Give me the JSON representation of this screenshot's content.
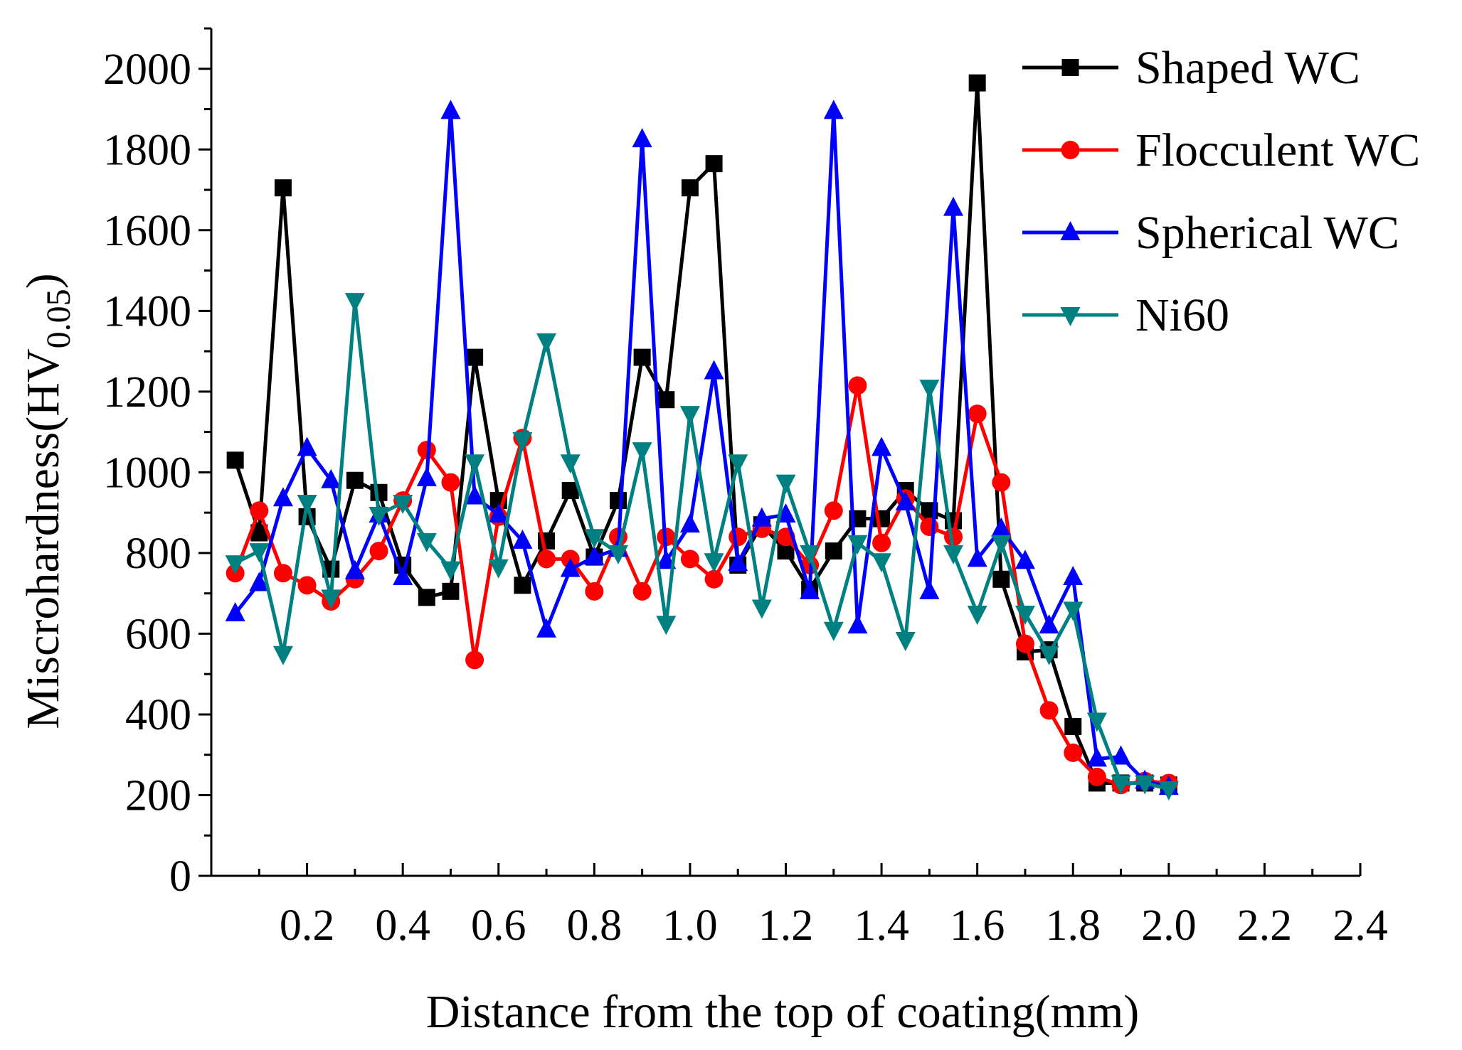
{
  "chart_data": {
    "type": "line",
    "title": "",
    "xlabel": "Distance from the top of coating(mm)",
    "ylabel": {
      "prefix": "Miscrohardness(HV",
      "subscript": "0.05",
      "suffix": ")"
    },
    "xlim": [
      0.0,
      2.4
    ],
    "ylim": [
      0,
      2100
    ],
    "xticks": [
      0.2,
      0.4,
      0.6,
      0.8,
      1.0,
      1.2,
      1.4,
      1.6,
      1.8,
      2.0,
      2.2,
      2.4
    ],
    "xtick_labels": [
      "0.2",
      "0.4",
      "0.6",
      "0.8",
      "1.0",
      "1.2",
      "1.4",
      "1.6",
      "1.8",
      "2.0",
      "2.2",
      "2.4"
    ],
    "yticks": [
      0,
      200,
      400,
      600,
      800,
      1000,
      1200,
      1400,
      1600,
      1800,
      2000
    ],
    "ytick_labels": [
      "0",
      "200",
      "400",
      "600",
      "800",
      "1000",
      "1200",
      "1400",
      "1600",
      "1800",
      "2000"
    ],
    "legend_position": "top-right",
    "x": [
      0.05,
      0.1,
      0.15,
      0.2,
      0.25,
      0.3,
      0.35,
      0.4,
      0.45,
      0.5,
      0.55,
      0.6,
      0.65,
      0.7,
      0.75,
      0.8,
      0.85,
      0.9,
      0.95,
      1.0,
      1.05,
      1.1,
      1.15,
      1.2,
      1.25,
      1.3,
      1.35,
      1.4,
      1.45,
      1.5,
      1.55,
      1.6,
      1.65,
      1.7,
      1.75,
      1.8,
      1.85,
      1.9,
      1.95,
      2.0
    ],
    "series": [
      {
        "name": "Shaped WC",
        "color": "#000000",
        "marker": "square",
        "values": [
          1030,
          850,
          1705,
          890,
          760,
          980,
          950,
          770,
          690,
          705,
          1285,
          930,
          720,
          830,
          955,
          790,
          930,
          1285,
          1180,
          1705,
          1765,
          770,
          870,
          805,
          710,
          805,
          885,
          885,
          955,
          905,
          880,
          1965,
          735,
          555,
          560,
          370,
          230,
          230,
          230,
          225
        ]
      },
      {
        "name": "Flocculent WC",
        "color": "#ff0000",
        "marker": "circle",
        "values": [
          750,
          905,
          750,
          720,
          680,
          735,
          805,
          930,
          1055,
          975,
          535,
          890,
          1085,
          785,
          785,
          705,
          840,
          705,
          840,
          785,
          735,
          840,
          860,
          840,
          770,
          905,
          1215,
          825,
          935,
          865,
          840,
          1145,
          975,
          575,
          410,
          305,
          245,
          225,
          235,
          230
        ]
      },
      {
        "name": "Spherical WC",
        "color": "#0000ff",
        "marker": "triangle-up",
        "values": [
          650,
          725,
          935,
          1060,
          980,
          755,
          895,
          740,
          985,
          1895,
          940,
          895,
          830,
          610,
          760,
          790,
          810,
          1825,
          780,
          870,
          1250,
          775,
          885,
          895,
          705,
          1895,
          620,
          1060,
          925,
          705,
          1655,
          785,
          860,
          780,
          620,
          740,
          290,
          295,
          235,
          220
        ]
      },
      {
        "name": "Ni60",
        "color": "#008080",
        "marker": "triangle-down",
        "values": [
          775,
          805,
          550,
          925,
          690,
          1425,
          895,
          925,
          830,
          760,
          1025,
          765,
          1080,
          1325,
          1025,
          840,
          800,
          1055,
          625,
          1145,
          780,
          1025,
          665,
          975,
          800,
          610,
          825,
          780,
          585,
          1210,
          800,
          650,
          825,
          650,
          550,
          660,
          385,
          230,
          230,
          215
        ]
      }
    ]
  }
}
